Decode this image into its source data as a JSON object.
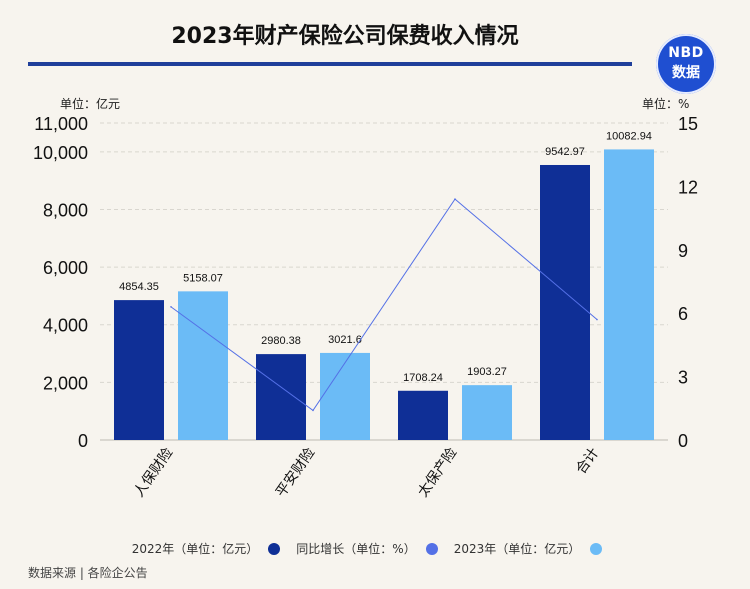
{
  "header": {
    "title": "2023年财产保险公司保费收入情况",
    "logo_line1": "NBD",
    "logo_line2": "数据"
  },
  "units": {
    "left": "单位：亿元",
    "right": "单位：%"
  },
  "colors": {
    "series_2022": "#0f2f96",
    "series_growth": "#5470e6",
    "series_2023": "#6bbbf6",
    "title_rule": "#1f3f9a",
    "logo_bg": "#1f4fd1"
  },
  "legend": [
    {
      "label": "2022年（单位：亿元）",
      "color": "#0f2f96"
    },
    {
      "label": "同比增长（单位：%）",
      "color": "#5470e6"
    },
    {
      "label": "2023年（单位：亿元）",
      "color": "#6bbbf6"
    }
  ],
  "source": "数据来源 | 各险企公告",
  "chart_data": {
    "type": "bar",
    "categories": [
      "人保财险",
      "平安财险",
      "太保产险",
      "合计"
    ],
    "series": [
      {
        "name": "2022年（单位：亿元）",
        "values": [
          4854.35,
          2980.38,
          1708.24,
          9542.97
        ],
        "axis": "left",
        "type": "bar"
      },
      {
        "name": "2023年（单位：亿元）",
        "values": [
          5158.07,
          3021.6,
          1903.27,
          10082.94
        ],
        "axis": "left",
        "type": "bar"
      },
      {
        "name": "同比增长（单位：%）",
        "values": [
          6.3,
          1.4,
          11.4,
          5.7
        ],
        "axis": "right",
        "type": "line"
      }
    ],
    "data_labels_2022": [
      "4854.35",
      "2980.38",
      "1708.24",
      "9542.97"
    ],
    "data_labels_2023": [
      "5158.07",
      "3021.6",
      "1903.27",
      "10082.94"
    ],
    "left_axis": {
      "ticks": [
        0,
        2000,
        4000,
        6000,
        8000,
        10000,
        11000
      ],
      "tick_labels": [
        "0",
        "2,000",
        "4,000",
        "6,000",
        "8,000",
        "10,000",
        "11,000"
      ],
      "range": [
        0,
        11000
      ]
    },
    "right_axis": {
      "ticks": [
        0,
        3,
        6,
        9,
        12,
        15
      ],
      "tick_labels": [
        "0",
        "3",
        "6",
        "9",
        "12",
        "15"
      ],
      "range": [
        0,
        15
      ]
    },
    "grid": true
  }
}
